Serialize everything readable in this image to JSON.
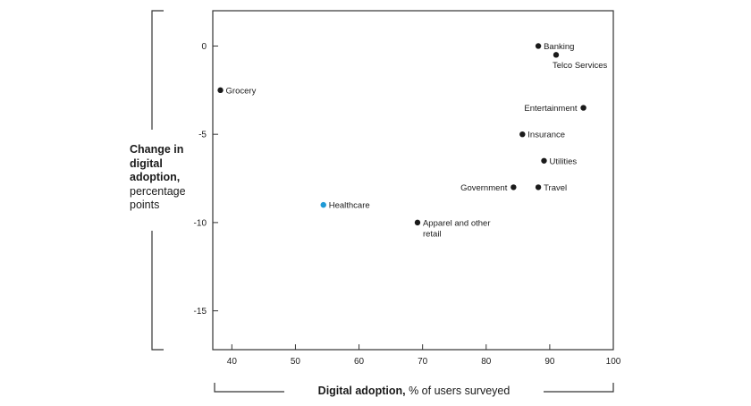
{
  "chart_data": {
    "type": "scatter",
    "title": "",
    "ylabel_bold": "Change in digital adoption,",
    "ylabel_rest": "percentage points",
    "xlabel_bold": "Digital adoption,",
    "xlabel_rest": "% of users surveyed",
    "xlim": [
      37,
      100
    ],
    "ylim": [
      -17.2,
      2
    ],
    "x_ticks": [
      40,
      50,
      60,
      70,
      80,
      90,
      100
    ],
    "y_ticks": [
      0,
      -5,
      -10,
      -15
    ],
    "grid": false,
    "colors": {
      "default": "#1a1a1a",
      "highlight": "#1f9ad6",
      "frame": "#333333"
    },
    "points": [
      {
        "label": "Banking",
        "x": 88.2,
        "y": 0.0,
        "highlight": false,
        "label_pos": "right"
      },
      {
        "label": "Telco Services",
        "x": 91.0,
        "y": -0.5,
        "highlight": false,
        "label_pos": "below-right"
      },
      {
        "label": "Grocery",
        "x": 38.2,
        "y": -2.5,
        "highlight": false,
        "label_pos": "right"
      },
      {
        "label": "Entertainment",
        "x": 95.3,
        "y": -3.5,
        "highlight": false,
        "label_pos": "left"
      },
      {
        "label": "Insurance",
        "x": 85.7,
        "y": -5.0,
        "highlight": false,
        "label_pos": "right"
      },
      {
        "label": "Utilities",
        "x": 89.1,
        "y": -6.5,
        "highlight": false,
        "label_pos": "right"
      },
      {
        "label": "Government",
        "x": 84.3,
        "y": -8.0,
        "highlight": false,
        "label_pos": "left"
      },
      {
        "label": "Travel",
        "x": 88.2,
        "y": -8.0,
        "highlight": false,
        "label_pos": "right"
      },
      {
        "label": "Healthcare",
        "x": 54.4,
        "y": -9.0,
        "highlight": true,
        "label_pos": "right"
      },
      {
        "label": "Apparel and other retail",
        "lines": [
          "Apparel and other",
          "retail"
        ],
        "x": 69.2,
        "y": -10.0,
        "highlight": false,
        "label_pos": "right"
      }
    ]
  }
}
